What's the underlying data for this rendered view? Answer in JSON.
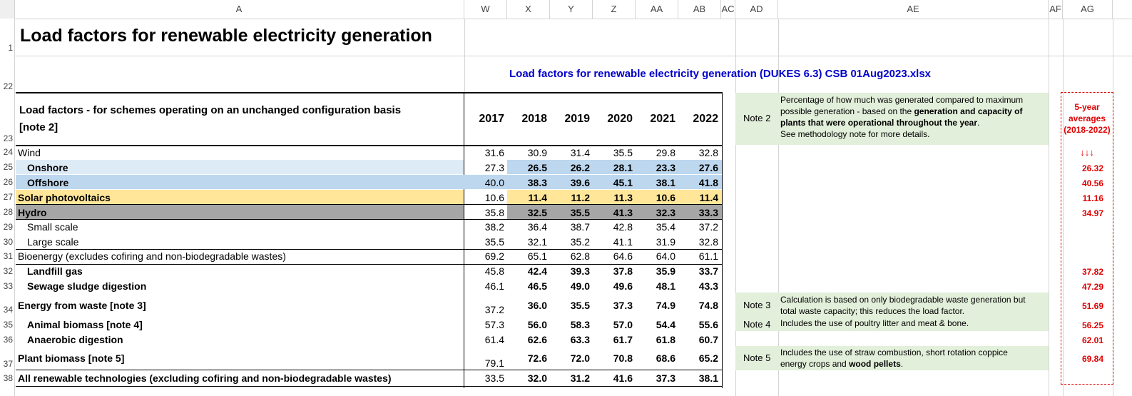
{
  "columns": [
    "A",
    "W",
    "X",
    "Y",
    "Z",
    "AA",
    "AB",
    "AC",
    "AD",
    "AE",
    "AF",
    "AG"
  ],
  "row_numbers": [
    "1",
    "22",
    "23",
    "24",
    "25",
    "26",
    "27",
    "28",
    "29",
    "30",
    "31",
    "32",
    "33",
    "34",
    "35",
    "36",
    "37",
    "38"
  ],
  "title": "Load factors for renewable electricity generation",
  "source_link": "Load factors for renewable electricity generation (DUKES 6.3) CSB 01Aug2023.xlsx",
  "header": {
    "label": "Load factors - for schemes operating on an unchanged configuration basis [note 2]",
    "label_line1": "Load factors - for schemes operating on an unchanged configuration basis",
    "label_line2": "[note 2]",
    "years": [
      "2017",
      "2018",
      "2019",
      "2020",
      "2021",
      "2022"
    ]
  },
  "table": {
    "rows": [
      {
        "label": "Wind",
        "values": [
          "31.6",
          "30.9",
          "31.4",
          "35.5",
          "29.8",
          "32.8"
        ],
        "avg": ""
      },
      {
        "label": "Onshore",
        "values": [
          "27.3",
          "26.5",
          "26.2",
          "28.1",
          "23.3",
          "27.6"
        ],
        "avg": "26.32"
      },
      {
        "label": "Offshore",
        "values": [
          "40.0",
          "38.3",
          "39.6",
          "45.1",
          "38.1",
          "41.8"
        ],
        "avg": "40.56"
      },
      {
        "label": "Solar photovoltaics",
        "values": [
          "10.6",
          "11.4",
          "11.2",
          "11.3",
          "10.6",
          "11.4"
        ],
        "avg": "11.16"
      },
      {
        "label": "Hydro",
        "values": [
          "35.8",
          "32.5",
          "35.5",
          "41.3",
          "32.3",
          "33.3"
        ],
        "avg": "34.97"
      },
      {
        "label": "Small scale",
        "values": [
          "38.2",
          "36.4",
          "38.7",
          "42.8",
          "35.4",
          "37.2"
        ],
        "avg": ""
      },
      {
        "label": "Large scale",
        "values": [
          "35.5",
          "32.1",
          "35.2",
          "41.1",
          "31.9",
          "32.8"
        ],
        "avg": ""
      },
      {
        "label": "Bioenergy (excludes cofiring and non-biodegradable wastes)",
        "values": [
          "69.2",
          "65.1",
          "62.8",
          "64.6",
          "64.0",
          "61.1"
        ],
        "avg": ""
      },
      {
        "label": "Landfill gas",
        "values": [
          "45.8",
          "42.4",
          "39.3",
          "37.8",
          "35.9",
          "33.7"
        ],
        "avg": "37.82"
      },
      {
        "label": "Sewage sludge digestion",
        "values": [
          "46.1",
          "46.5",
          "49.0",
          "49.6",
          "48.1",
          "43.3"
        ],
        "avg": "47.29"
      },
      {
        "label": "Energy from waste [note 3]",
        "values": [
          "37.2",
          "36.0",
          "35.5",
          "37.3",
          "74.9",
          "74.8"
        ],
        "avg": "51.69"
      },
      {
        "label": "Animal biomass [note 4]",
        "values": [
          "57.3",
          "56.0",
          "58.3",
          "57.0",
          "54.4",
          "55.6"
        ],
        "avg": "56.25"
      },
      {
        "label": "Anaerobic digestion",
        "values": [
          "61.4",
          "62.6",
          "63.3",
          "61.7",
          "61.8",
          "60.7"
        ],
        "avg": "62.01"
      },
      {
        "label": "Plant biomass [note 5]",
        "values": [
          "79.1",
          "72.6",
          "72.0",
          "70.8",
          "68.6",
          "65.2"
        ],
        "avg": "69.84"
      },
      {
        "label": "All renewable technologies (excluding cofiring and non-biodegradable wastes)",
        "values": [
          "33.5",
          "32.0",
          "31.2",
          "41.6",
          "37.3",
          "38.1"
        ],
        "avg": ""
      }
    ]
  },
  "notes": [
    {
      "label": "Note 2",
      "line1": "Percentage of how much was generated compared to maximum",
      "line2a": "possible generation - based on the ",
      "line2b": "generation and capacity of",
      "line3a": "plants that were operational throughout the year",
      "line3b": ".",
      "line4": "See methodology note for more details."
    },
    {
      "label": "Note 3",
      "line1": "Calculation is based on only biodegradable waste generation but",
      "line2": "total waste capacity;  this reduces the load factor."
    },
    {
      "label": "Note 4",
      "line1": "Includes the use of poultry litter and meat & bone."
    },
    {
      "label": "Note 5",
      "line1": "Includes the use of straw combustion, short rotation coppice",
      "line2a": "energy crops and ",
      "line2b": "wood pellets",
      "line2c": "."
    }
  ],
  "averages": {
    "title_line1": "5-year",
    "title_line2": "averages",
    "title_line3": "(2018-2022)",
    "arrows": "↓↓↓"
  },
  "colors": {
    "accent_blue": "#0000cc",
    "avg_red": "#e00000",
    "onshore_bg": "#ddebf7",
    "offshore_bg": "#bdd7ee",
    "solar_bg": "#ffe699",
    "hydro_bg": "#a6a6a6",
    "note_bg": "#e2efda"
  }
}
